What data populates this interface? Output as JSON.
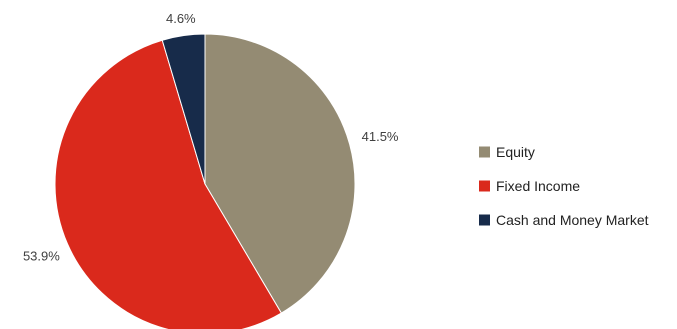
{
  "chart_data": {
    "type": "pie",
    "start_angle_deg": 0,
    "direction": "clockwise",
    "slices": [
      {
        "label": "Equity",
        "value": 41.5,
        "value_label": "41.5%",
        "color": "#948b73"
      },
      {
        "label": "Fixed Income",
        "value": 53.9,
        "value_label": "53.9%",
        "color": "#da291c"
      },
      {
        "label": "Cash and Money Market",
        "value": 4.6,
        "value_label": "4.6%",
        "color": "#172b4a"
      }
    ],
    "legend_position": "right",
    "title": ""
  }
}
